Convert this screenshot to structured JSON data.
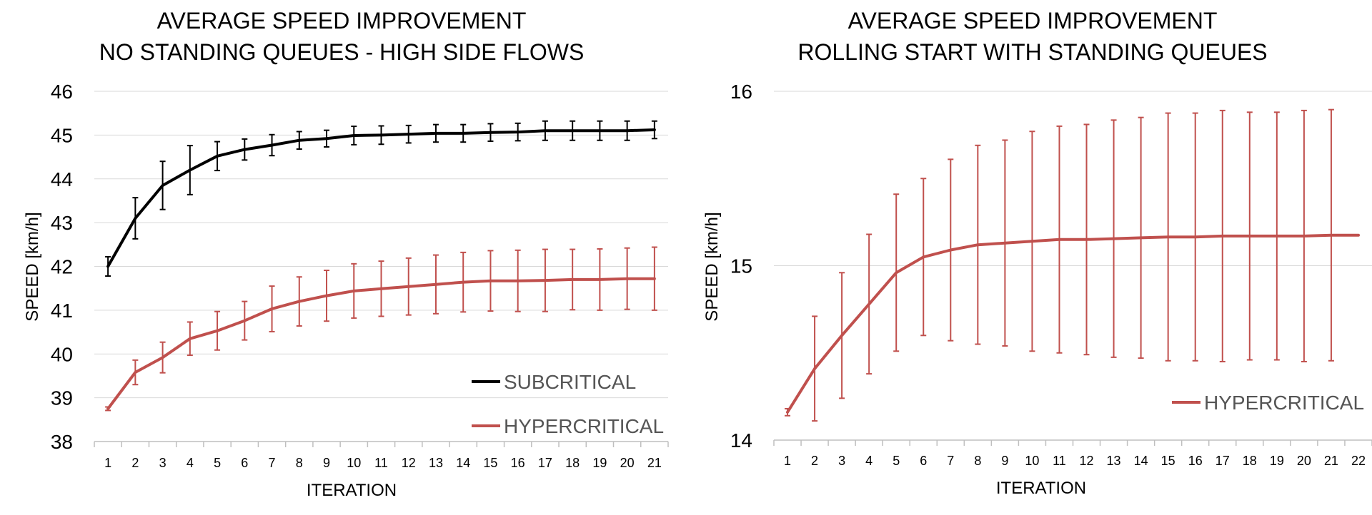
{
  "chart_data": [
    {
      "type": "line",
      "title": [
        "AVERAGE SPEED IMPROVEMENT",
        "NO STANDING QUEUES - HIGH SIDE FLOWS"
      ],
      "xlabel": "ITERATION",
      "ylabel": "SPEED [km/h]",
      "ylim": [
        38,
        46
      ],
      "yticks": [
        "38",
        "39",
        "40",
        "41",
        "42",
        "43",
        "44",
        "45",
        "46"
      ],
      "x": [
        "1",
        "2",
        "3",
        "4",
        "5",
        "6",
        "7",
        "8",
        "9",
        "10",
        "11",
        "12",
        "13",
        "14",
        "15",
        "16",
        "17",
        "18",
        "19",
        "20",
        "21"
      ],
      "grid": true,
      "legend_position": "bottom-right",
      "series": [
        {
          "name": "SUBCRITICAL",
          "color": "#000000",
          "values": [
            42.0,
            43.1,
            43.85,
            44.2,
            44.52,
            44.67,
            44.77,
            44.88,
            44.92,
            44.99,
            45.0,
            45.02,
            45.04,
            45.04,
            45.06,
            45.07,
            45.1,
            45.1,
            45.1,
            45.1,
            45.12
          ],
          "error": [
            0.22,
            0.47,
            0.55,
            0.56,
            0.33,
            0.24,
            0.24,
            0.2,
            0.19,
            0.21,
            0.21,
            0.2,
            0.2,
            0.2,
            0.2,
            0.2,
            0.22,
            0.22,
            0.22,
            0.22,
            0.2
          ]
        },
        {
          "name": "HYPERCRITICAL",
          "color": "#c0504d",
          "values": [
            38.75,
            39.58,
            39.92,
            40.35,
            40.53,
            40.76,
            41.03,
            41.2,
            41.33,
            41.44,
            41.49,
            41.54,
            41.59,
            41.64,
            41.67,
            41.67,
            41.68,
            41.7,
            41.7,
            41.72,
            41.72
          ],
          "error": [
            0.04,
            0.28,
            0.35,
            0.38,
            0.44,
            0.44,
            0.52,
            0.56,
            0.58,
            0.62,
            0.63,
            0.65,
            0.67,
            0.68,
            0.69,
            0.7,
            0.71,
            0.69,
            0.7,
            0.7,
            0.72
          ]
        }
      ]
    },
    {
      "type": "line",
      "title": [
        "AVERAGE SPEED IMPROVEMENT",
        "ROLLING START WITH STANDING QUEUES"
      ],
      "xlabel": "ITERATION",
      "ylabel": "SPEED [km/h]",
      "ylim": [
        14,
        16
      ],
      "yticks": [
        "14",
        "15",
        "16"
      ],
      "x": [
        "1",
        "2",
        "3",
        "4",
        "5",
        "6",
        "7",
        "8",
        "9",
        "10",
        "11",
        "12",
        "13",
        "14",
        "15",
        "16",
        "17",
        "18",
        "19",
        "20",
        "21",
        "22"
      ],
      "grid": true,
      "legend_position": "right",
      "series": [
        {
          "name": "HYPERCRITICAL",
          "color": "#c0504d",
          "values": [
            14.16,
            14.41,
            14.6,
            14.78,
            14.96,
            15.05,
            15.09,
            15.12,
            15.13,
            15.14,
            15.15,
            15.15,
            15.155,
            15.16,
            15.165,
            15.165,
            15.17,
            15.17,
            15.17,
            15.17,
            15.175,
            15.175
          ],
          "error": [
            0.02,
            0.3,
            0.36,
            0.4,
            0.45,
            0.45,
            0.52,
            0.57,
            0.59,
            0.63,
            0.65,
            0.66,
            0.68,
            0.69,
            0.71,
            0.71,
            0.72,
            0.71,
            0.71,
            0.72,
            0.72,
            null
          ]
        }
      ]
    }
  ]
}
